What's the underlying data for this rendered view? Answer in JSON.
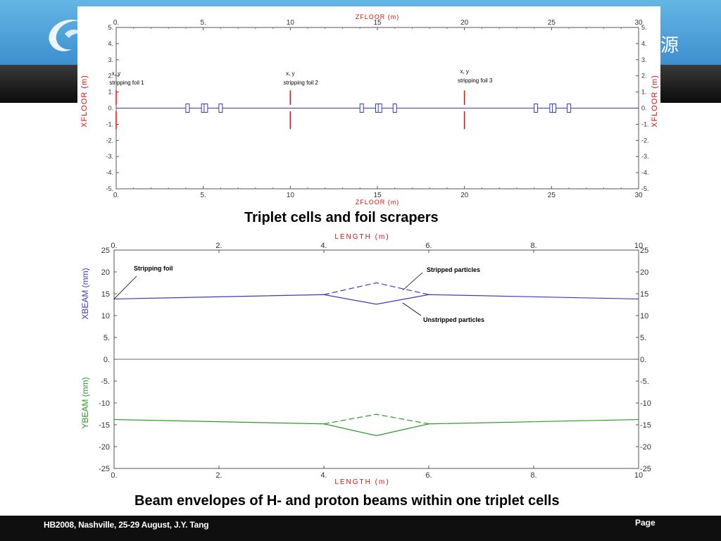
{
  "header": {
    "banner_char": "源",
    "colors": {
      "banner_blue": "#4fa3da",
      "banner_dark": "#1a1a1a"
    }
  },
  "captions": {
    "top": "Triplet cells and foil scrapers",
    "bottom": "Beam envelopes of H- and proton beams within one triplet cells"
  },
  "footer": {
    "text": "HB2008, Nashville, 25-29  August, J.Y. Tang",
    "page_label": "Page"
  },
  "chart_data": [
    {
      "type": "line",
      "name": "layout",
      "xlabel": "ZFLOOR   (m)",
      "ylabel": "XFLOOR   (m)",
      "xlim": [
        0,
        30
      ],
      "ylim": [
        -5,
        5
      ],
      "xticks": [
        "0.",
        "5.",
        "10",
        "15",
        "20",
        "25",
        "30"
      ],
      "yticks": [
        "5.",
        "4.",
        "3.",
        "2.",
        "1.",
        "0.",
        "-1.",
        "-2.",
        "-3.",
        "-4.",
        "-5."
      ],
      "xtick_values": [
        0,
        5,
        10,
        15,
        20,
        25,
        30
      ],
      "ytick_values": [
        5,
        4,
        3,
        2,
        1,
        0,
        -1,
        -2,
        -3,
        -4,
        -5
      ],
      "beamline": {
        "x": [
          0,
          30
        ],
        "y": [
          0,
          0
        ],
        "color": "#3a3ac8"
      },
      "foils": [
        {
          "z": 0,
          "label_line1": "x, y",
          "label_line2": "stripping foil 1",
          "color": "#e01010"
        },
        {
          "z": 10,
          "label_line1": "x, y",
          "label_line2": "stripping foil 2",
          "color": "#e01010"
        },
        {
          "z": 20,
          "label_line1": "x, y",
          "label_line2": "stripping foil 3",
          "color": "#e01010"
        }
      ],
      "quadrupoles_z": [
        4.1,
        5.0,
        5.15,
        6.0,
        14.1,
        15.0,
        15.15,
        16.0,
        24.1,
        25.0,
        25.15,
        26.0
      ],
      "axis_label_color": "#e01010"
    },
    {
      "type": "line",
      "name": "envelopes",
      "xlabel": "LENGTH   (m)",
      "ylabel_top": "XBEAM   (mm)",
      "ylabel_bottom": "YBEAM   (mm)",
      "xlim": [
        0,
        10
      ],
      "ylim": [
        -25,
        25
      ],
      "xticks": [
        "0.",
        "2.",
        "4.",
        "6.",
        "8.",
        "10"
      ],
      "xtick_values": [
        0,
        2,
        4,
        6,
        8,
        10
      ],
      "yticks": [
        "25",
        "20",
        "15",
        "10",
        "5.",
        "0.",
        "-5.",
        "-10",
        "-15",
        "-20",
        "-25"
      ],
      "ytick_values": [
        25,
        20,
        15,
        10,
        5,
        0,
        -5,
        -10,
        -15,
        -20,
        -25
      ],
      "series": [
        {
          "name": "Unstripped particles",
          "axis": "x",
          "style": "solid",
          "color": "#3a3ac8",
          "x": [
            0,
            4.0,
            5.0,
            6.0,
            10
          ],
          "y": [
            13.8,
            14.8,
            12.6,
            14.8,
            13.8
          ]
        },
        {
          "name": "Stripped particles",
          "axis": "x",
          "style": "dashed",
          "color": "#3a3ac8",
          "x": [
            4.0,
            5.0,
            6.0
          ],
          "y": [
            14.8,
            17.5,
            14.8
          ]
        },
        {
          "axis": "y",
          "style": "solid",
          "color": "#2a9a2a",
          "x": [
            0,
            4.0,
            5.0,
            6.0,
            10
          ],
          "y": [
            -13.8,
            -14.8,
            -17.5,
            -14.8,
            -13.8
          ]
        },
        {
          "axis": "y",
          "style": "dashed",
          "color": "#2a9a2a",
          "x": [
            4.0,
            5.0,
            6.0
          ],
          "y": [
            -14.8,
            -12.6,
            -14.8
          ]
        }
      ],
      "annotations": [
        {
          "text": "Stripping foil",
          "target_x": 0,
          "target_y": 13.8
        },
        {
          "text": "Stripped particles",
          "target_x": 5.5,
          "target_y": 16.0
        },
        {
          "text": "Unstripped particles",
          "target_x": 5.5,
          "target_y": 13.5
        }
      ],
      "axis_label_color": "#e01010",
      "ylabel_top_color": "#3a3ac8",
      "ylabel_bottom_color": "#2a9a2a"
    }
  ]
}
